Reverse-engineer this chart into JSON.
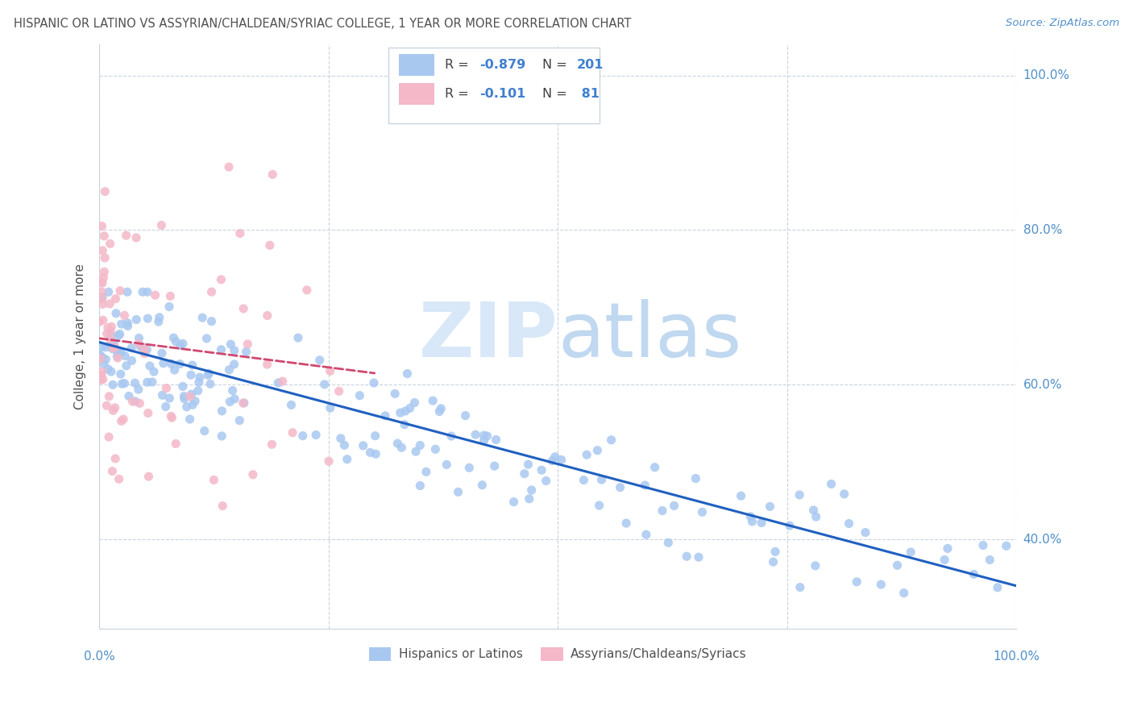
{
  "title": "HISPANIC OR LATINO VS ASSYRIAN/CHALDEAN/SYRIAC COLLEGE, 1 YEAR OR MORE CORRELATION CHART",
  "source": "Source: ZipAtlas.com",
  "ylabel": "College, 1 year or more",
  "watermark_zip": "ZIP",
  "watermark_atlas": "atlas",
  "blue_color": "#a8c8f0",
  "pink_color": "#f4b8c8",
  "blue_line_color": "#2060c0",
  "pink_line_color": "#d04870",
  "pink_line_dash": "--",
  "title_color": "#505050",
  "axis_label_color": "#5090c8",
  "watermark_zip_color": "#d8e8f8",
  "watermark_atlas_color": "#c0d8f0",
  "legend_text_color": "#4080d0",
  "legend_label_color": "#404040",
  "background_color": "#ffffff",
  "grid_color": "#c8d4e0",
  "blue_r": "-0.879",
  "blue_n": "201",
  "pink_r": "-0.101",
  "pink_n": "81",
  "xmin": 0.0,
  "xmax": 1.0,
  "ymin": 0.285,
  "ymax": 1.04,
  "ytick_vals": [
    0.4,
    0.6,
    0.8,
    1.0
  ],
  "ytick_labels": [
    "40.0%",
    "60.0%",
    "80.0%",
    "100.0%"
  ],
  "blue_line_y_start": 0.655,
  "blue_line_y_end": 0.34,
  "pink_line_x_start": 0.0,
  "pink_line_x_end": 0.3,
  "pink_line_y_start": 0.66,
  "pink_line_y_end": 0.615,
  "seed": 12345
}
